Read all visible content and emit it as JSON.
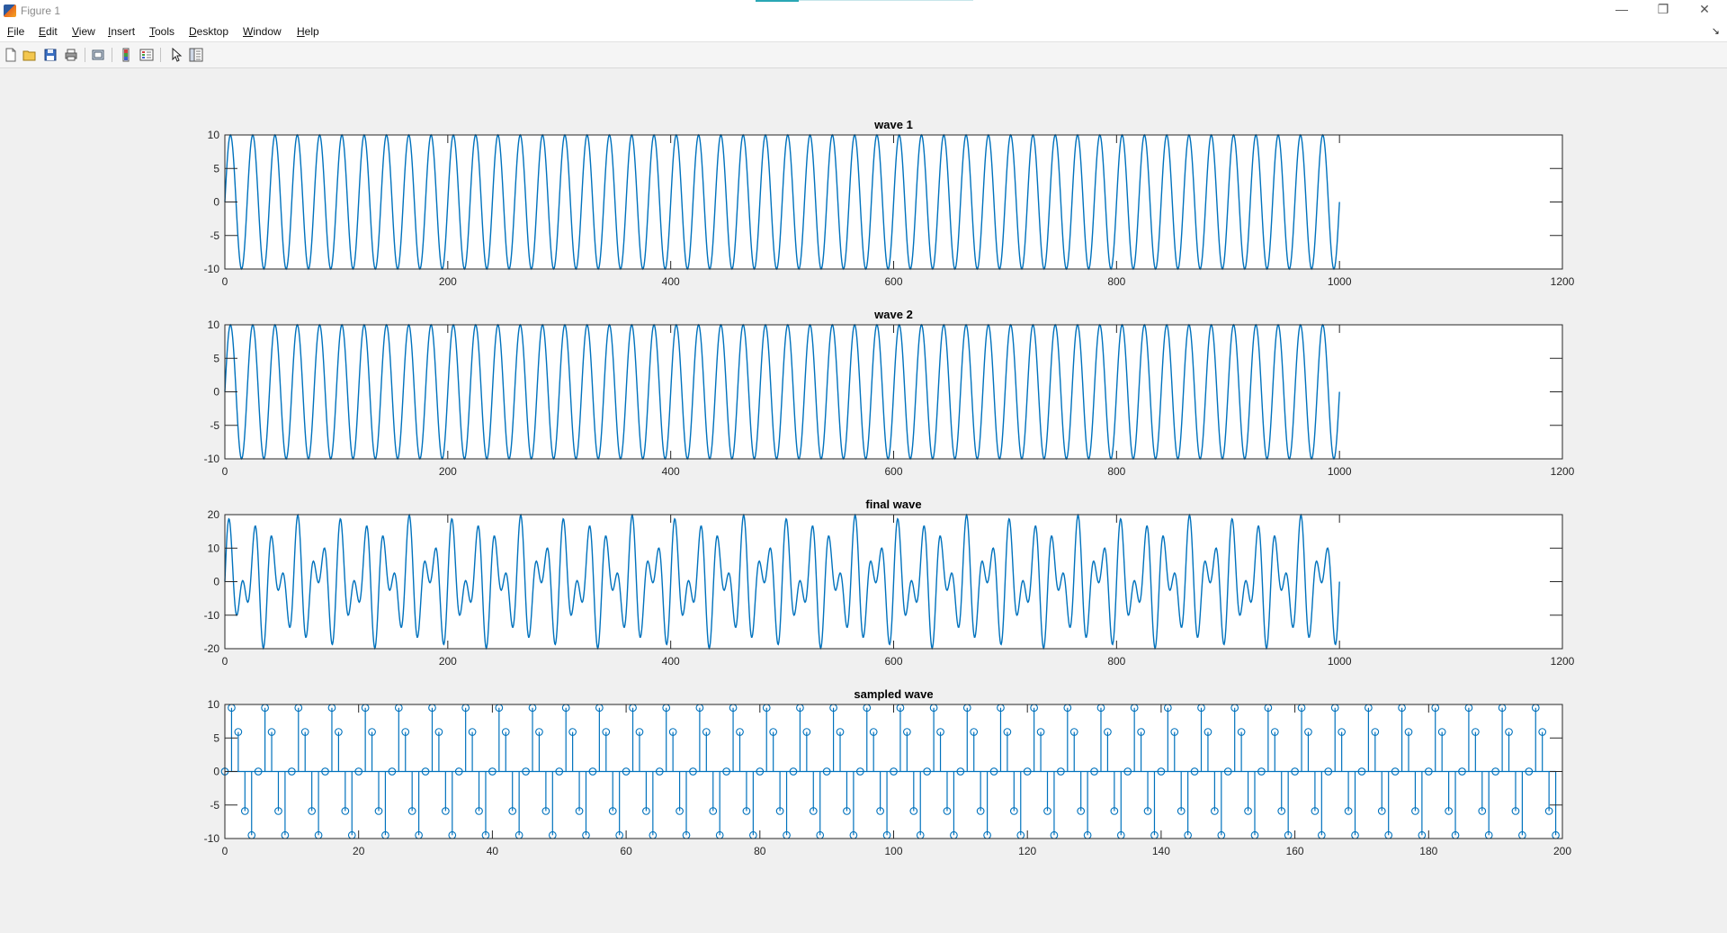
{
  "window": {
    "title": "Figure 1",
    "minimize_icon": "minimize-icon",
    "maximize_icon": "restore-icon",
    "close_icon": "close-icon"
  },
  "menu": {
    "items": [
      {
        "label": "File",
        "mnemonic": "F",
        "rest": "ile"
      },
      {
        "label": "Edit",
        "mnemonic": "E",
        "rest": "dit"
      },
      {
        "label": "View",
        "mnemonic": "V",
        "rest": "iew"
      },
      {
        "label": "Insert",
        "mnemonic": "I",
        "rest": "nsert"
      },
      {
        "label": "Tools",
        "mnemonic": "T",
        "rest": "ools"
      },
      {
        "label": "Desktop",
        "mnemonic": "D",
        "rest": "esktop"
      },
      {
        "label": "Window",
        "mnemonic": "W",
        "rest": "indow"
      },
      {
        "label": "Help",
        "mnemonic": "H",
        "rest": "elp"
      }
    ]
  },
  "toolbar": {
    "buttons": [
      "new-figure-icon",
      "open-file-icon",
      "save-icon",
      "print-icon",
      "link-plot-icon",
      "colorbar-icon",
      "legend-icon",
      "edit-plot-arrow-icon",
      "property-inspector-icon"
    ]
  },
  "colors": {
    "line": "#0072bd",
    "axes": "#262626",
    "background": "#f0f0f0"
  },
  "chart_data": [
    {
      "type": "line",
      "title": "wave 1",
      "xlim": [
        0,
        1200
      ],
      "ylim": [
        -10,
        10
      ],
      "xticks": [
        0,
        200,
        400,
        600,
        800,
        1000,
        1200
      ],
      "yticks": [
        -10,
        -5,
        0,
        5,
        10
      ],
      "series": [
        {
          "function": "10*sin(2*pi*n/20)",
          "amplitude": 10,
          "period": 20,
          "x": [
            0,
            1000
          ]
        }
      ],
      "grid": false
    },
    {
      "type": "line",
      "title": "wave 2",
      "xlim": [
        0,
        1200
      ],
      "ylim": [
        -10,
        10
      ],
      "xticks": [
        0,
        200,
        400,
        600,
        800,
        1000,
        1200
      ],
      "yticks": [
        -10,
        -5,
        0,
        5,
        10
      ],
      "series": [
        {
          "function": "10*sin(2*pi*n/20)",
          "amplitude": 10,
          "period": 20,
          "x": [
            0,
            1000
          ]
        }
      ],
      "grid": false
    },
    {
      "type": "line",
      "title": "final wave",
      "xlim": [
        0,
        1200
      ],
      "ylim": [
        -20,
        20
      ],
      "xticks": [
        0,
        200,
        400,
        600,
        800,
        1000,
        1200
      ],
      "yticks": [
        -20,
        -10,
        0,
        10,
        20
      ],
      "series": [
        {
          "function": "10*sin(2*pi*n/20)+10*sin(2*pi*n/12.5)",
          "x": [
            0,
            1000
          ]
        }
      ],
      "grid": false
    },
    {
      "type": "stem",
      "title": "sampled wave",
      "xlim": [
        0,
        200
      ],
      "ylim": [
        -10,
        10
      ],
      "xticks": [
        0,
        20,
        40,
        60,
        80,
        100,
        120,
        140,
        160,
        180,
        200
      ],
      "yticks": [
        -10,
        -5,
        0,
        5,
        10
      ],
      "series": [
        {
          "x_start": 0,
          "x_end": 199,
          "x_step": 1,
          "values": [
            0,
            9.5,
            5.9,
            -5.9,
            -9.5
          ]
        }
      ],
      "grid": false
    }
  ]
}
